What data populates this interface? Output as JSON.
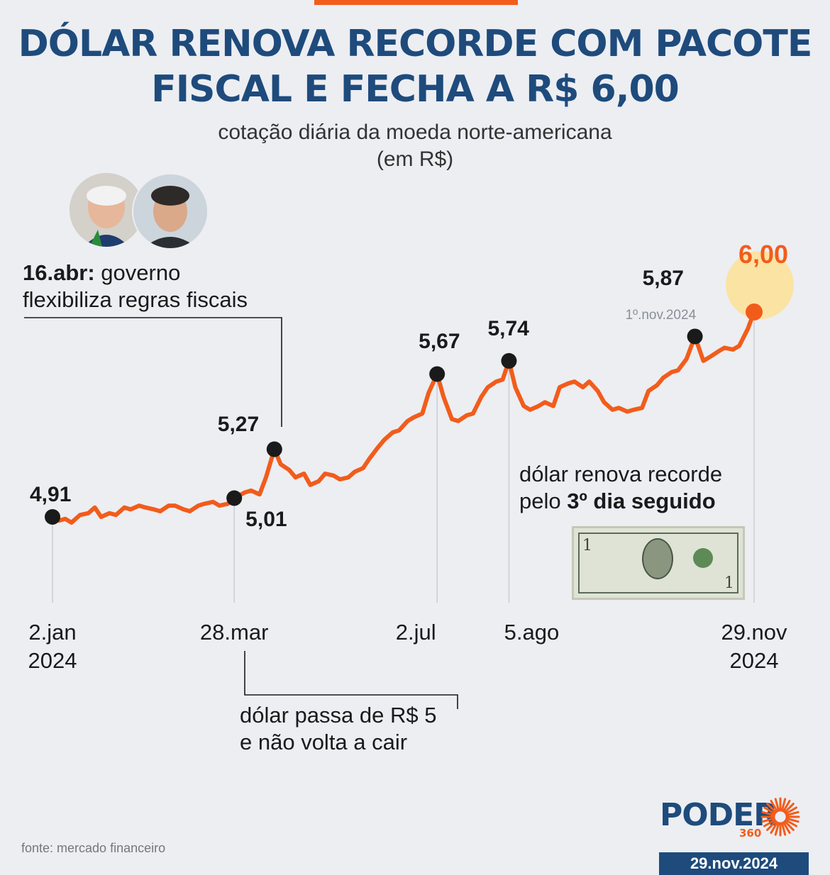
{
  "header": {
    "title_line1": "DÓLAR RENOVA RECORDE COM PACOTE",
    "title_line2": "FISCAL E FECHA A R$ 6,00",
    "subtitle_line1": "cotação diária da moeda norte-americana",
    "subtitle_line2": "(em R$)"
  },
  "annotations": {
    "apr_bold": "16.abr:",
    "apr_text1": " governo",
    "apr_text2": "flexibiliza regras fiscais",
    "mar_text1": "dólar passa de R$ 5",
    "mar_text2": "e não volta a cair",
    "record_text1": "dólar renova recorde",
    "record_text2_pre": "pelo ",
    "record_text2_bold": "3º dia seguido",
    "nov_date": "1º.nov.2024"
  },
  "colors": {
    "line": "#f25c1b",
    "title": "#1e4b7c",
    "marker": "#1a1a1a",
    "highlight_bubble": "#fbe3a4"
  },
  "chart_data": {
    "type": "line",
    "title": "DÓLAR RENOVA RECORDE COM PACOTE FISCAL E FECHA A R$ 6,00",
    "subtitle": "cotação diária da moeda norte-americana (em R$)",
    "unit": "R$",
    "x_start": "2024-01-02",
    "x_end": "2024-11-29",
    "ylim": [
      4.8,
      6.05
    ],
    "grid": false,
    "x_ticks": [
      {
        "date": "2024-01-02",
        "line1": "2.jan",
        "line2": "2024"
      },
      {
        "date": "2024-03-28",
        "line1": "28.mar",
        "line2": ""
      },
      {
        "date": "2024-07-02",
        "line1": "2.jul",
        "line2": ""
      },
      {
        "date": "2024-08-05",
        "line1": "5.ago",
        "line2": ""
      },
      {
        "date": "2024-11-29",
        "line1": "29.nov",
        "line2": "2024"
      }
    ],
    "highlights": [
      {
        "date": "2024-01-02",
        "label": "4,91"
      },
      {
        "date": "2024-03-28",
        "label": "5,01"
      },
      {
        "date": "2024-04-16",
        "label": "5,27"
      },
      {
        "date": "2024-07-02",
        "label": "5,67"
      },
      {
        "date": "2024-08-05",
        "label": "5,74"
      },
      {
        "date": "2024-11-01",
        "label": "5,87"
      },
      {
        "date": "2024-11-29",
        "label": "6,00"
      }
    ],
    "series": [
      {
        "points": [
          [
            "2024-01-02",
            4.91
          ],
          [
            "2024-01-05",
            4.89
          ],
          [
            "2024-01-08",
            4.9
          ],
          [
            "2024-01-11",
            4.88
          ],
          [
            "2024-01-15",
            4.92
          ],
          [
            "2024-01-19",
            4.93
          ],
          [
            "2024-01-22",
            4.96
          ],
          [
            "2024-01-25",
            4.91
          ],
          [
            "2024-01-29",
            4.93
          ],
          [
            "2024-02-01",
            4.92
          ],
          [
            "2024-02-05",
            4.96
          ],
          [
            "2024-02-08",
            4.95
          ],
          [
            "2024-02-12",
            4.97
          ],
          [
            "2024-02-15",
            4.96
          ],
          [
            "2024-02-19",
            4.95
          ],
          [
            "2024-02-22",
            4.94
          ],
          [
            "2024-02-26",
            4.97
          ],
          [
            "2024-02-29",
            4.97
          ],
          [
            "2024-03-04",
            4.95
          ],
          [
            "2024-03-07",
            4.94
          ],
          [
            "2024-03-11",
            4.97
          ],
          [
            "2024-03-14",
            4.98
          ],
          [
            "2024-03-18",
            4.99
          ],
          [
            "2024-03-21",
            4.97
          ],
          [
            "2024-03-25",
            4.98
          ],
          [
            "2024-03-28",
            5.01
          ],
          [
            "2024-04-02",
            5.04
          ],
          [
            "2024-04-05",
            5.05
          ],
          [
            "2024-04-09",
            5.03
          ],
          [
            "2024-04-12",
            5.12
          ],
          [
            "2024-04-16",
            5.27
          ],
          [
            "2024-04-19",
            5.19
          ],
          [
            "2024-04-23",
            5.16
          ],
          [
            "2024-04-26",
            5.12
          ],
          [
            "2024-04-30",
            5.14
          ],
          [
            "2024-05-03",
            5.08
          ],
          [
            "2024-05-07",
            5.1
          ],
          [
            "2024-05-10",
            5.14
          ],
          [
            "2024-05-14",
            5.13
          ],
          [
            "2024-05-17",
            5.11
          ],
          [
            "2024-05-21",
            5.12
          ],
          [
            "2024-05-24",
            5.15
          ],
          [
            "2024-05-28",
            5.17
          ],
          [
            "2024-05-31",
            5.22
          ],
          [
            "2024-06-04",
            5.28
          ],
          [
            "2024-06-07",
            5.32
          ],
          [
            "2024-06-11",
            5.36
          ],
          [
            "2024-06-14",
            5.37
          ],
          [
            "2024-06-18",
            5.42
          ],
          [
            "2024-06-21",
            5.44
          ],
          [
            "2024-06-25",
            5.46
          ],
          [
            "2024-06-28",
            5.57
          ],
          [
            "2024-07-02",
            5.67
          ],
          [
            "2024-07-05",
            5.55
          ],
          [
            "2024-07-09",
            5.43
          ],
          [
            "2024-07-12",
            5.42
          ],
          [
            "2024-07-16",
            5.45
          ],
          [
            "2024-07-19",
            5.46
          ],
          [
            "2024-07-23",
            5.55
          ],
          [
            "2024-07-26",
            5.6
          ],
          [
            "2024-07-30",
            5.63
          ],
          [
            "2024-08-02",
            5.64
          ],
          [
            "2024-08-05",
            5.74
          ],
          [
            "2024-08-08",
            5.6
          ],
          [
            "2024-08-12",
            5.5
          ],
          [
            "2024-08-15",
            5.48
          ],
          [
            "2024-08-19",
            5.5
          ],
          [
            "2024-08-22",
            5.52
          ],
          [
            "2024-08-26",
            5.5
          ],
          [
            "2024-08-29",
            5.6
          ],
          [
            "2024-09-02",
            5.62
          ],
          [
            "2024-09-05",
            5.63
          ],
          [
            "2024-09-09",
            5.6
          ],
          [
            "2024-09-12",
            5.63
          ],
          [
            "2024-09-16",
            5.58
          ],
          [
            "2024-09-19",
            5.52
          ],
          [
            "2024-09-23",
            5.48
          ],
          [
            "2024-09-26",
            5.49
          ],
          [
            "2024-09-30",
            5.47
          ],
          [
            "2024-10-03",
            5.48
          ],
          [
            "2024-10-07",
            5.49
          ],
          [
            "2024-10-10",
            5.58
          ],
          [
            "2024-10-14",
            5.61
          ],
          [
            "2024-10-17",
            5.65
          ],
          [
            "2024-10-21",
            5.68
          ],
          [
            "2024-10-24",
            5.69
          ],
          [
            "2024-10-28",
            5.75
          ],
          [
            "2024-11-01",
            5.87
          ],
          [
            "2024-11-05",
            5.74
          ],
          [
            "2024-11-08",
            5.76
          ],
          [
            "2024-11-12",
            5.79
          ],
          [
            "2024-11-15",
            5.81
          ],
          [
            "2024-11-19",
            5.8
          ],
          [
            "2024-11-22",
            5.82
          ],
          [
            "2024-11-26",
            5.91
          ],
          [
            "2024-11-29",
            6.0
          ]
        ]
      }
    ]
  },
  "footer": {
    "source": "fonte: mercado financeiro",
    "logo": "PODER",
    "logo_sub": "360",
    "date": "29.nov.2024"
  }
}
